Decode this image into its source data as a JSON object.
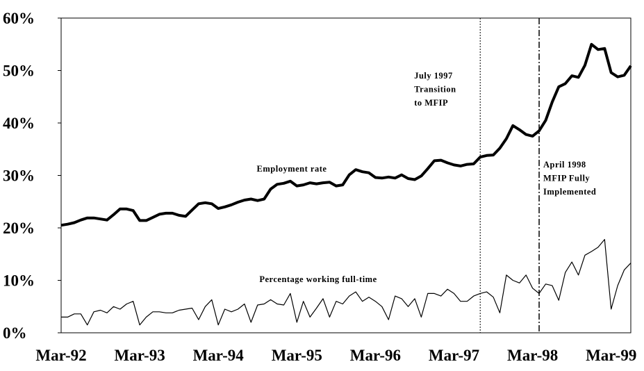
{
  "chart_data": {
    "type": "line",
    "categories": [
      "Mar-92",
      null,
      null,
      null,
      null,
      null,
      null,
      null,
      null,
      null,
      null,
      null,
      "Mar-93",
      null,
      null,
      null,
      null,
      null,
      null,
      null,
      null,
      null,
      null,
      null,
      "Mar-94",
      null,
      null,
      null,
      null,
      null,
      null,
      null,
      null,
      null,
      null,
      null,
      "Mar-95",
      null,
      null,
      null,
      null,
      null,
      null,
      null,
      null,
      null,
      null,
      null,
      "Mar-96",
      null,
      null,
      null,
      null,
      null,
      null,
      null,
      null,
      null,
      null,
      null,
      "Mar-97",
      null,
      null,
      null,
      null,
      null,
      null,
      null,
      null,
      null,
      null,
      null,
      "Mar-98",
      null,
      null,
      null,
      null,
      null,
      null,
      null,
      null,
      null,
      null,
      null,
      "Mar-99",
      null,
      null,
      null
    ],
    "series": [
      {
        "name": "Employment rate",
        "color": "#000000",
        "width": 4,
        "values": [
          20.5,
          20.7,
          21.0,
          21.5,
          21.9,
          21.9,
          21.7,
          21.5,
          22.5,
          23.6,
          23.6,
          23.3,
          21.4,
          21.4,
          22.0,
          22.6,
          22.8,
          22.8,
          22.4,
          22.2,
          23.4,
          24.6,
          24.8,
          24.6,
          23.7,
          24.0,
          24.4,
          24.9,
          25.3,
          25.5,
          25.2,
          25.5,
          27.4,
          28.3,
          28.5,
          28.9,
          28.0,
          28.2,
          28.6,
          28.4,
          28.6,
          28.7,
          28.0,
          28.2,
          30.1,
          31.1,
          30.7,
          30.5,
          29.6,
          29.5,
          29.7,
          29.5,
          30.1,
          29.4,
          29.2,
          29.9,
          31.3,
          32.8,
          32.9,
          32.4,
          32.0,
          31.8,
          32.1,
          32.2,
          33.5,
          33.8,
          33.9,
          35.2,
          37.0,
          39.5,
          38.7,
          37.8,
          37.5,
          38.5,
          40.5,
          44.0,
          46.9,
          47.5,
          49.0,
          48.7,
          51.0,
          55.0,
          54.0,
          54.2,
          49.6,
          48.8,
          49.1,
          50.9
        ]
      },
      {
        "name": "Percentage working full-time",
        "color": "#000000",
        "width": 1.2,
        "values": [
          3.0,
          3.0,
          3.6,
          3.6,
          1.5,
          4.0,
          4.3,
          3.8,
          5.0,
          4.5,
          5.5,
          6.0,
          1.5,
          3.0,
          4.0,
          4.0,
          3.8,
          3.8,
          4.3,
          4.5,
          4.7,
          2.5,
          5.0,
          6.3,
          1.5,
          4.5,
          4.0,
          4.5,
          5.5,
          2.0,
          5.3,
          5.5,
          6.3,
          5.5,
          5.3,
          7.5,
          2.0,
          6.0,
          3.0,
          4.7,
          6.5,
          3.0,
          6.0,
          5.5,
          7.0,
          7.8,
          6.0,
          6.8,
          6.0,
          5.0,
          2.5,
          7.0,
          6.5,
          5.0,
          6.5,
          3.0,
          7.5,
          7.5,
          7.0,
          8.3,
          7.5,
          6.0,
          6.0,
          7.0,
          7.5,
          7.8,
          6.8,
          3.8,
          11.0,
          10.0,
          9.5,
          11.0,
          8.5,
          7.5,
          9.3,
          9.0,
          6.2,
          11.5,
          13.5,
          11.0,
          14.8,
          15.5,
          16.3,
          17.8,
          4.5,
          9.0,
          12.0,
          13.3
        ]
      }
    ],
    "ylim": [
      0,
      60
    ],
    "yticks": [
      {
        "value": 0,
        "label": "0%"
      },
      {
        "value": 10,
        "label": "10%"
      },
      {
        "value": 20,
        "label": "20%"
      },
      {
        "value": 30,
        "label": "30%"
      },
      {
        "value": 40,
        "label": "40%"
      },
      {
        "value": 50,
        "label": "50%"
      },
      {
        "value": 60,
        "label": "60%"
      }
    ],
    "events": [
      {
        "index": 64,
        "style": "dotted",
        "label": [
          "July 1997",
          "Transition",
          "to MFIP"
        ]
      },
      {
        "index": 73,
        "style": "dashdot",
        "label": [
          "April 1998",
          "MFIP Fully",
          "Implemented"
        ]
      }
    ]
  }
}
